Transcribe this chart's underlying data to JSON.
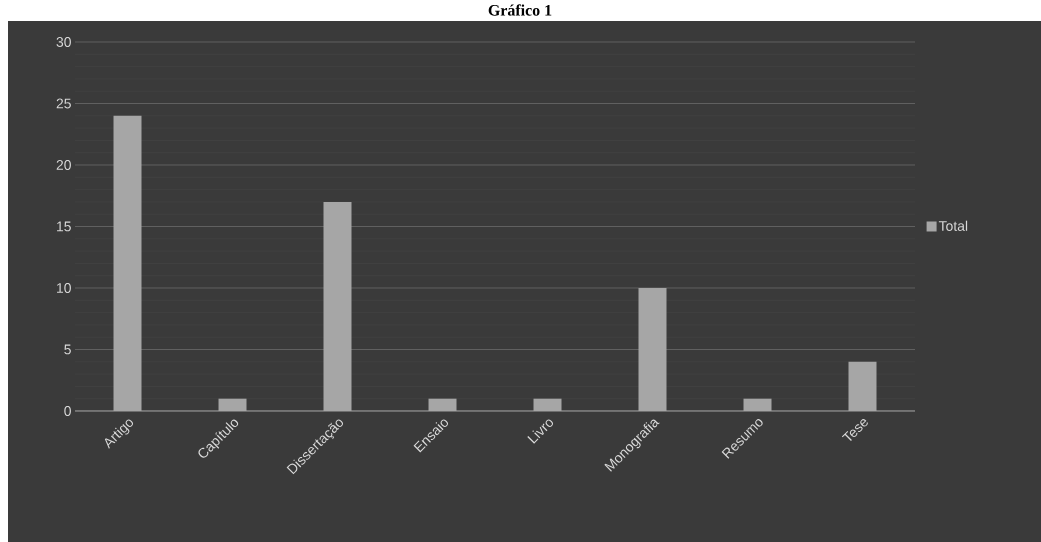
{
  "chart_data": {
    "type": "bar",
    "title": "Gráfico 1",
    "categories": [
      "Artigo",
      "Capítulo",
      "Dissertação",
      "Ensaio",
      "Livro",
      "Monografia",
      "Resumo",
      "Tese"
    ],
    "series": [
      {
        "name": "Total",
        "color": "#a6a6a6",
        "values": [
          24,
          1,
          17,
          1,
          1,
          10,
          1,
          4
        ]
      }
    ],
    "ylim": [
      0,
      30
    ],
    "yticks": [
      0,
      5,
      10,
      15,
      20,
      25,
      30
    ],
    "grid": "y",
    "legend": "right"
  }
}
